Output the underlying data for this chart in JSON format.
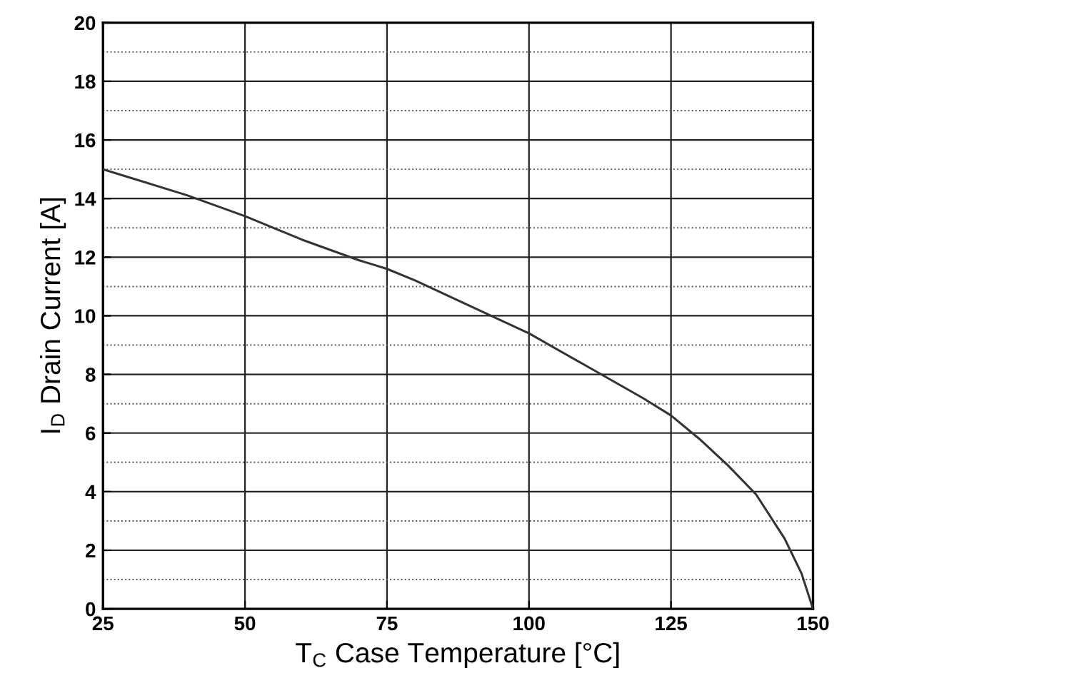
{
  "chart_data": {
    "type": "line",
    "xlabel": "T$_{C}$ Case Temperature [°C]",
    "ylabel": "I$_{D}$ Drain Current [A]",
    "x": [
      25,
      30,
      40,
      50,
      60,
      70,
      75,
      80,
      90,
      100,
      110,
      120,
      125,
      130,
      135,
      140,
      145,
      148,
      150
    ],
    "series": [
      {
        "color": "#333333",
        "values": [
          15.0,
          14.7,
          14.1,
          13.4,
          12.6,
          11.9,
          11.6,
          11.2,
          10.3,
          9.4,
          8.3,
          7.2,
          6.6,
          5.8,
          4.9,
          3.9,
          2.4,
          1.2,
          0
        ]
      }
    ],
    "xlim": [
      25,
      150
    ],
    "xticks": [
      25,
      50,
      75,
      100,
      125,
      150
    ],
    "ylim": [
      0,
      20
    ],
    "yticks": [
      0,
      2,
      4,
      6,
      8,
      10,
      12,
      14,
      16,
      18,
      20
    ],
    "grid": true,
    "marker": "none",
    "line_style": "solid",
    "ref_lines": [
      {
        "axis": "y",
        "value": 1,
        "color": "#555555",
        "line_style": "dotted"
      },
      {
        "axis": "y",
        "value": 3,
        "color": "#555555",
        "line_style": "dotted"
      },
      {
        "axis": "y",
        "value": 5,
        "color": "#555555",
        "line_style": "dotted"
      },
      {
        "axis": "y",
        "value": 7,
        "color": "#555555",
        "line_style": "dotted"
      },
      {
        "axis": "y",
        "value": 9,
        "color": "#555555",
        "line_style": "dotted"
      },
      {
        "axis": "y",
        "value": 11,
        "color": "#555555",
        "line_style": "dotted"
      },
      {
        "axis": "y",
        "value": 13,
        "color": "#555555",
        "line_style": "dotted"
      },
      {
        "axis": "y",
        "value": 15,
        "color": "#555555",
        "line_style": "dotted"
      },
      {
        "axis": "y",
        "value": 17,
        "color": "#555555",
        "line_style": "dotted"
      },
      {
        "axis": "y",
        "value": 19,
        "color": "#555555",
        "line_style": "dotted"
      }
    ]
  }
}
